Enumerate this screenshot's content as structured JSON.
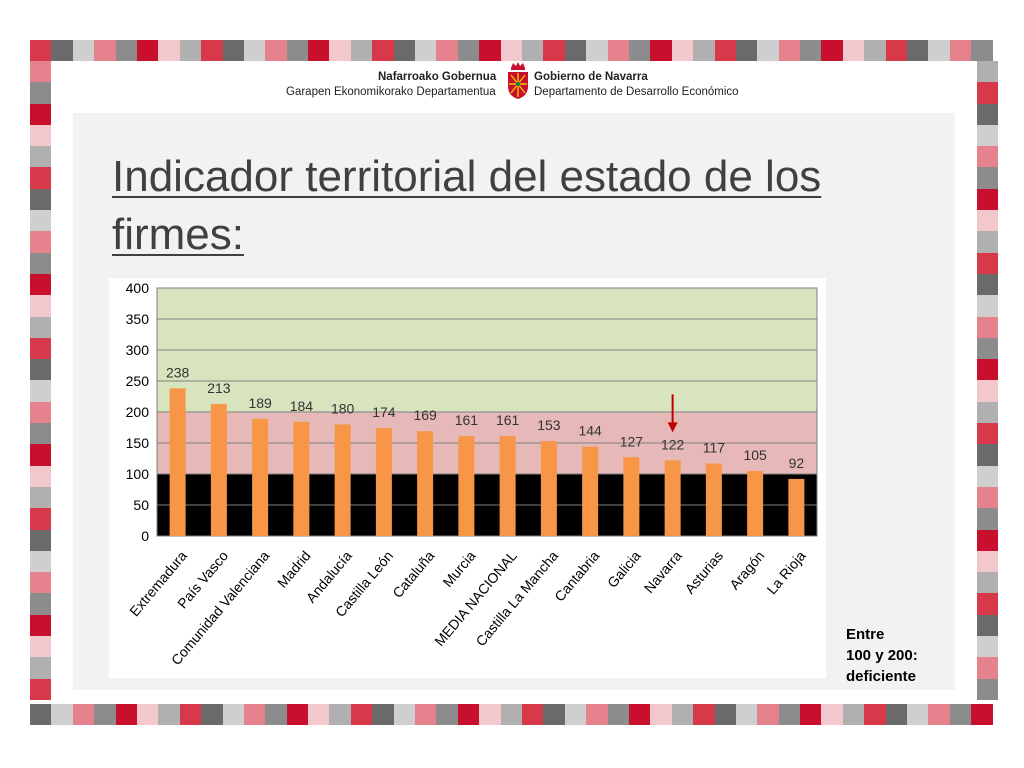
{
  "colors": {
    "tiles": [
      "#d8394a",
      "#e5828d",
      "#f2c8cd",
      "#6a6a6a",
      "#8c8c8c",
      "#b0b0b0",
      "#cfcfcf",
      "#c8102e"
    ],
    "bar": "#f79646",
    "zone_good": "#d7e4bd",
    "zone_deficient": "#e6b9b8",
    "zone_bad": "#000000",
    "arrow": "#c00000"
  },
  "header": {
    "eu_name": "Nafarroako Gobernua",
    "eu_dept": "Garapen Ekonomikorako Departamentua",
    "es_name": "Gobierno de Navarra",
    "es_dept": "Departamento de Desarrollo Económico",
    "crest": "navarra-coat-of-arms-icon"
  },
  "title": "Indicador territorial del estado de los firmes:",
  "note": {
    "line1": "Entre",
    "line2": "100 y 200:",
    "line3": "deficiente"
  },
  "chart_data": {
    "type": "bar",
    "categories": [
      "Extremadura",
      "País Vasco",
      "Comunidad Valenciana",
      "Madrid",
      "Andalucía",
      "Castilla León",
      "Cataluña",
      "Murcia",
      "MEDIA NACIONAL",
      "Castilla La Mancha",
      "Cantabria",
      "Galicia",
      "Navarra",
      "Asturias",
      "Aragón",
      "La Rioja"
    ],
    "values": [
      238,
      213,
      189,
      184,
      180,
      174,
      169,
      161,
      161,
      153,
      144,
      127,
      122,
      117,
      105,
      92
    ],
    "ylim": [
      0,
      400
    ],
    "yticks": [
      0,
      50,
      100,
      150,
      200,
      250,
      300,
      350,
      400
    ],
    "bands": [
      {
        "from": 0,
        "to": 100,
        "color": "#000000"
      },
      {
        "from": 100,
        "to": 200,
        "color": "#e6b9b8"
      },
      {
        "from": 200,
        "to": 400,
        "color": "#d7e4bd"
      }
    ],
    "highlight": "Navarra",
    "grid": true,
    "title": "",
    "xlabel": "",
    "ylabel": ""
  }
}
